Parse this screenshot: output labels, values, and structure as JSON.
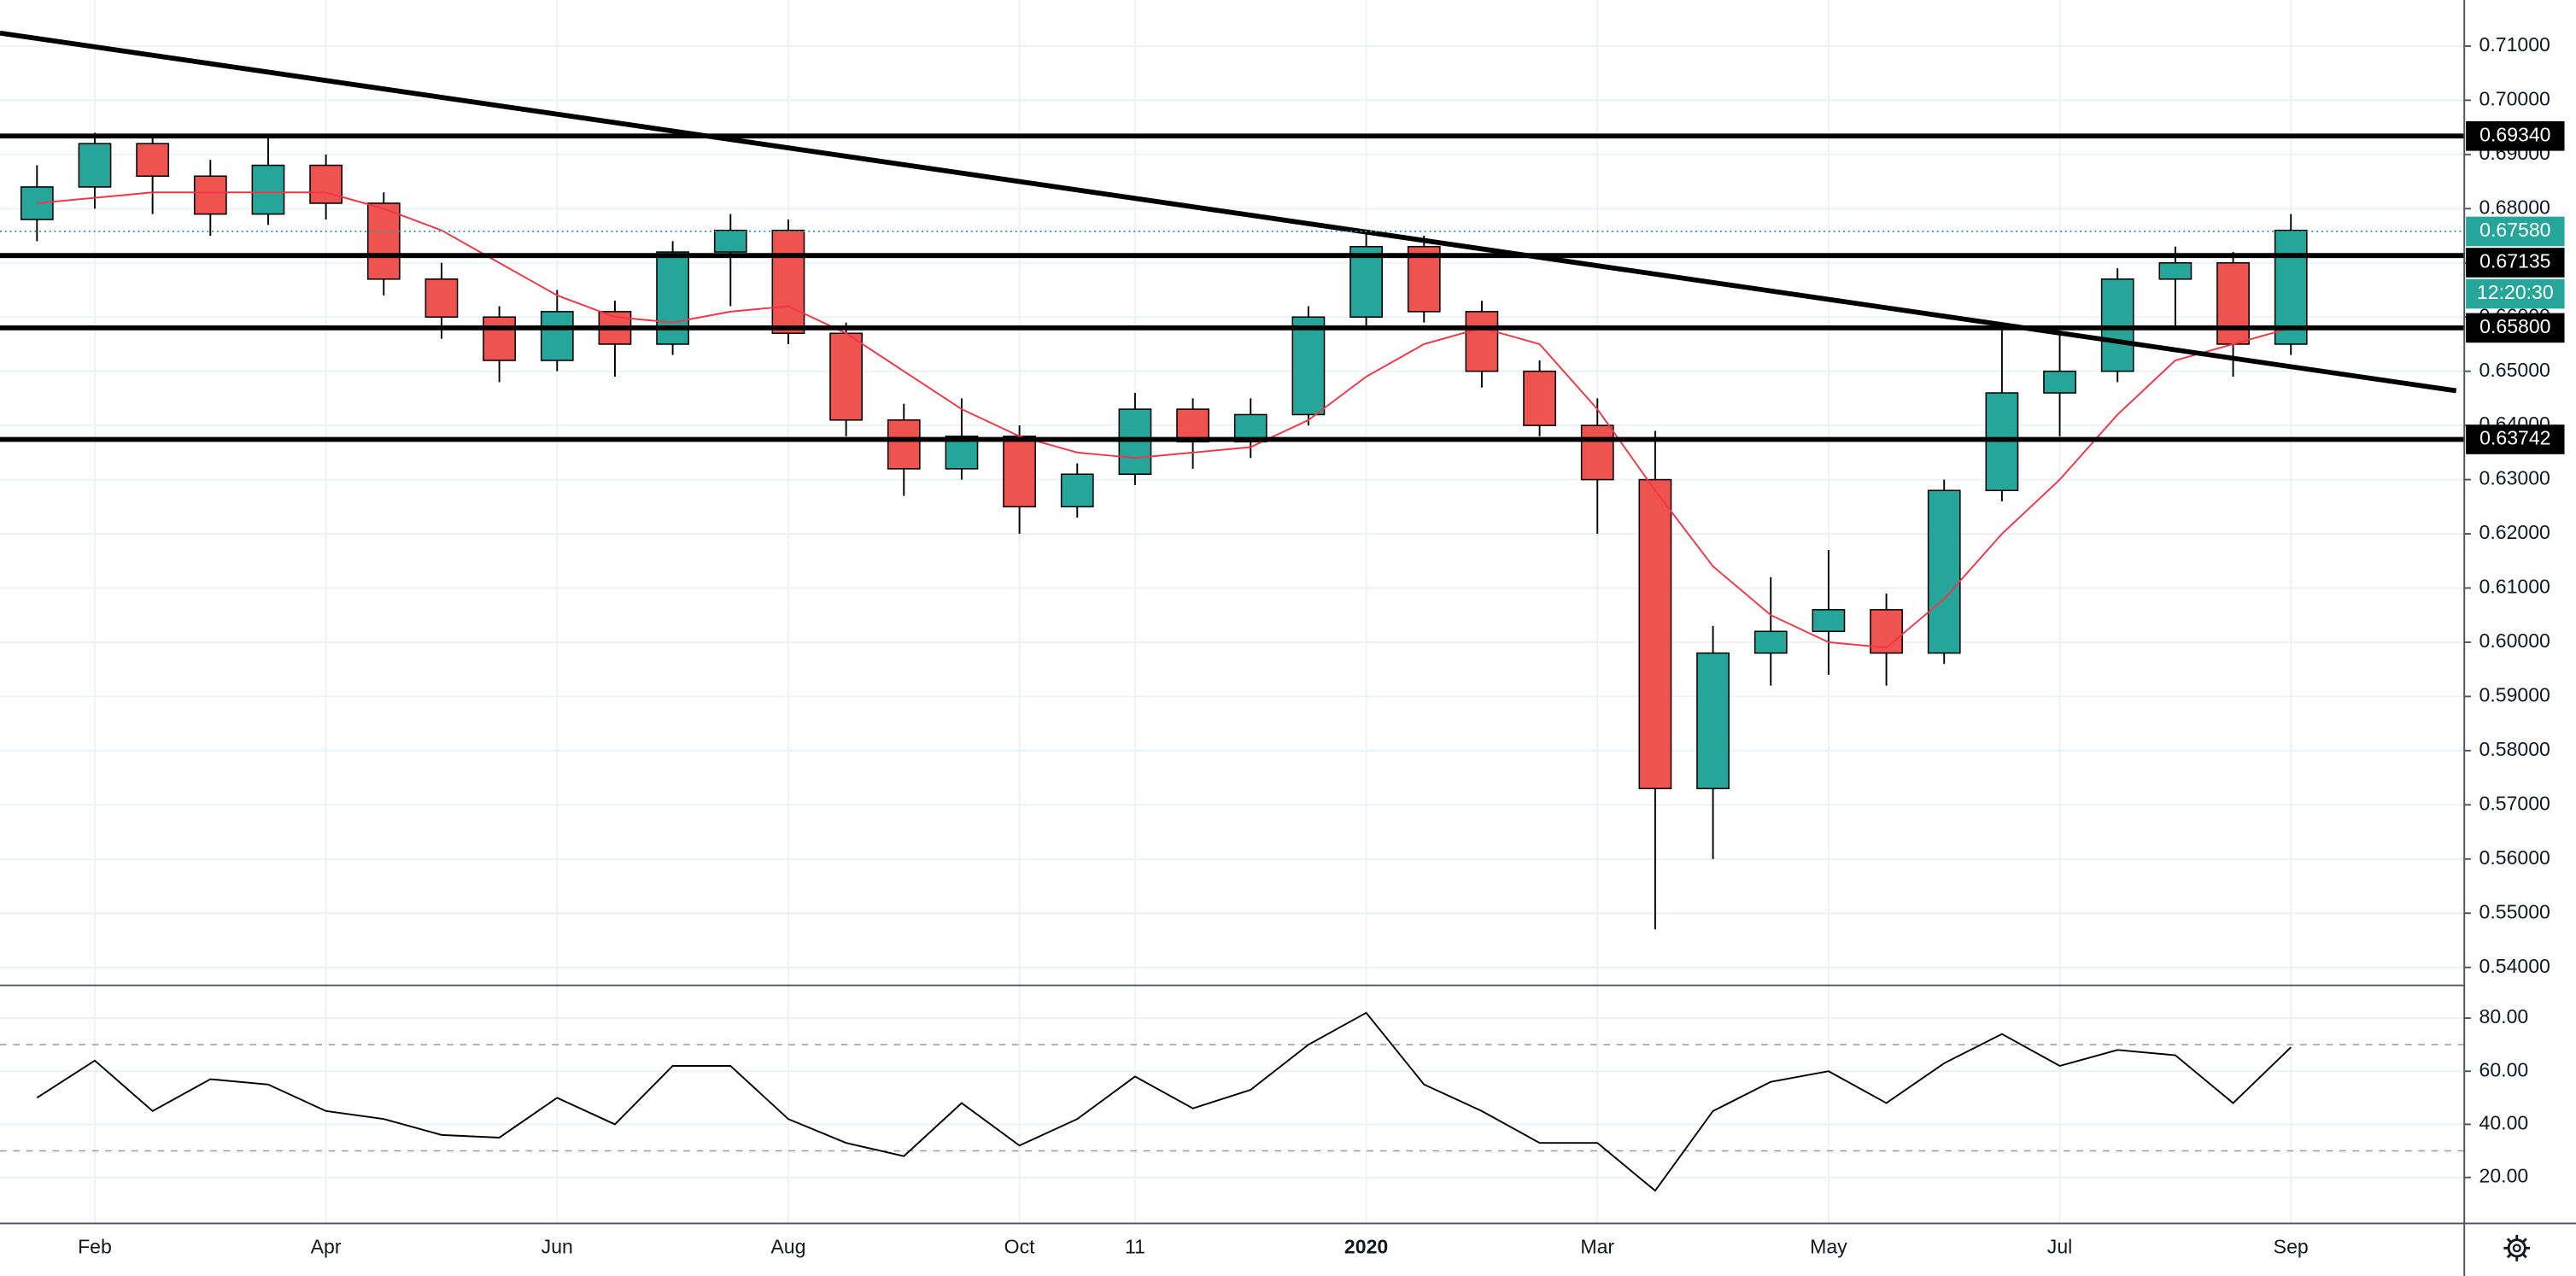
{
  "chart_data": [
    {
      "type": "candlestick",
      "x": [
        0.5,
        1.0,
        1.5,
        2.0,
        2.5,
        3.0,
        3.5,
        4.0,
        4.5,
        5.0,
        5.5,
        6.0,
        6.5,
        7.0,
        7.5,
        8.0,
        8.5,
        9.0,
        9.5,
        10.0,
        10.5,
        11.0,
        11.5,
        12.0,
        12.5,
        13.0,
        13.5,
        14.0,
        14.5,
        15.0,
        15.5,
        16.0,
        16.5,
        17.0,
        17.5,
        18.0,
        18.5,
        19.0,
        19.5,
        20.0
      ],
      "open": [
        0.678,
        0.684,
        0.692,
        0.686,
        0.679,
        0.688,
        0.681,
        0.667,
        0.66,
        0.652,
        0.661,
        0.655,
        0.672,
        0.676,
        0.657,
        0.641,
        0.632,
        0.638,
        0.625,
        0.631,
        0.643,
        0.637,
        0.642,
        0.66,
        0.673,
        0.661,
        0.65,
        0.64,
        0.63,
        0.573,
        0.598,
        0.602,
        0.606,
        0.598,
        0.628,
        0.646,
        0.65,
        0.667,
        0.67,
        0.655
      ],
      "high": [
        0.688,
        0.694,
        0.693,
        0.689,
        0.693,
        0.69,
        0.683,
        0.67,
        0.662,
        0.665,
        0.663,
        0.674,
        0.679,
        0.678,
        0.659,
        0.644,
        0.645,
        0.64,
        0.633,
        0.646,
        0.645,
        0.645,
        0.662,
        0.676,
        0.675,
        0.663,
        0.652,
        0.645,
        0.639,
        0.603,
        0.612,
        0.617,
        0.609,
        0.63,
        0.658,
        0.657,
        0.669,
        0.673,
        0.672,
        0.679
      ],
      "low": [
        0.674,
        0.68,
        0.679,
        0.675,
        0.677,
        0.678,
        0.664,
        0.656,
        0.648,
        0.65,
        0.649,
        0.653,
        0.662,
        0.655,
        0.638,
        0.627,
        0.63,
        0.62,
        0.623,
        0.629,
        0.632,
        0.634,
        0.64,
        0.658,
        0.659,
        0.647,
        0.638,
        0.62,
        0.547,
        0.56,
        0.592,
        0.594,
        0.592,
        0.596,
        0.626,
        0.638,
        0.648,
        0.658,
        0.649,
        0.653
      ],
      "close": [
        0.684,
        0.692,
        0.686,
        0.679,
        0.688,
        0.681,
        0.667,
        0.66,
        0.652,
        0.661,
        0.655,
        0.672,
        0.676,
        0.657,
        0.641,
        0.632,
        0.638,
        0.625,
        0.631,
        0.643,
        0.637,
        0.642,
        0.66,
        0.673,
        0.661,
        0.65,
        0.64,
        0.63,
        0.573,
        0.598,
        0.602,
        0.606,
        0.598,
        0.628,
        0.646,
        0.65,
        0.667,
        0.67,
        0.655,
        0.676
      ],
      "up_color": "#26a69a",
      "down_color": "#ef5350",
      "xlim": [
        0.18,
        21.5
      ],
      "xticks": [
        {
          "value": 1,
          "label": "Feb"
        },
        {
          "value": 3,
          "label": "Apr"
        },
        {
          "value": 5,
          "label": "Jun"
        },
        {
          "value": 7,
          "label": "Aug"
        },
        {
          "value": 9,
          "label": "Oct"
        },
        {
          "value": 10,
          "label": "11"
        },
        {
          "value": 12,
          "label": "2020"
        },
        {
          "value": 14,
          "label": "Mar"
        },
        {
          "value": 16,
          "label": "May"
        },
        {
          "value": 18,
          "label": "Jul"
        },
        {
          "value": 20,
          "label": "Sep"
        }
      ],
      "ylim": [
        0.5373,
        0.7185
      ],
      "yticks": [
        {
          "value": 0.71,
          "label": "0.71000"
        },
        {
          "value": 0.7,
          "label": "0.70000"
        },
        {
          "value": 0.69,
          "label": "0.69000"
        },
        {
          "value": 0.68,
          "label": "0.68000"
        },
        {
          "value": 0.67,
          "label": "0.67000"
        },
        {
          "value": 0.66,
          "label": "0.66000"
        },
        {
          "value": 0.65,
          "label": "0.65000"
        },
        {
          "value": 0.64,
          "label": "0.64000"
        },
        {
          "value": 0.63,
          "label": "0.63000"
        },
        {
          "value": 0.62,
          "label": "0.62000"
        },
        {
          "value": 0.61,
          "label": "0.61000"
        },
        {
          "value": 0.6,
          "label": "0.60000"
        },
        {
          "value": 0.59,
          "label": "0.59000"
        },
        {
          "value": 0.58,
          "label": "0.58000"
        },
        {
          "value": 0.57,
          "label": "0.57000"
        },
        {
          "value": 0.56,
          "label": "0.56000"
        },
        {
          "value": 0.55,
          "label": "0.55000"
        },
        {
          "value": 0.54,
          "label": "0.54000"
        }
      ],
      "grid": true,
      "moving_average": {
        "color": "#f23645",
        "x": [
          0.5,
          1.5,
          2.5,
          3.0,
          3.5,
          4.0,
          4.5,
          5.0,
          5.5,
          6.0,
          6.5,
          7.0,
          7.5,
          8.0,
          8.5,
          9.0,
          9.5,
          10.0,
          10.5,
          11.0,
          11.5,
          12.0,
          12.5,
          13.0,
          13.5,
          14.0,
          14.5,
          15.0,
          15.5,
          16.0,
          16.5,
          17.0,
          17.5,
          18.0,
          18.5,
          19.0,
          19.5,
          20.0
        ],
        "values": [
          0.681,
          0.683,
          0.683,
          0.683,
          0.68,
          0.676,
          0.67,
          0.664,
          0.66,
          0.659,
          0.661,
          0.662,
          0.657,
          0.65,
          0.643,
          0.638,
          0.635,
          0.634,
          0.635,
          0.636,
          0.641,
          0.649,
          0.655,
          0.658,
          0.655,
          0.643,
          0.628,
          0.614,
          0.605,
          0.6,
          0.599,
          0.608,
          0.62,
          0.63,
          0.642,
          0.652,
          0.655,
          0.658
        ]
      },
      "trendline": {
        "color": "#000000",
        "x": [
          0.18,
          21.43
        ],
        "values": [
          0.7124,
          0.6464
        ]
      },
      "levels": [
        {
          "value": 0.6934,
          "label": "0.69340"
        },
        {
          "value": 0.67135,
          "label": "0.67135"
        },
        {
          "value": 0.658,
          "label": "0.65800"
        },
        {
          "value": 0.63742,
          "label": "0.63742"
        }
      ],
      "level_color": "#000000",
      "current_price": {
        "value": 0.6758,
        "label": "0.67580",
        "color": "#26a69a"
      },
      "countdown": "12:20:30"
    },
    {
      "type": "line",
      "color": "#000000",
      "x": [
        0.5,
        1.0,
        1.5,
        2.0,
        2.5,
        3.0,
        3.5,
        4.0,
        4.5,
        5.0,
        5.5,
        6.0,
        6.5,
        7.0,
        7.5,
        8.0,
        8.5,
        9.0,
        9.5,
        10.0,
        10.5,
        11.0,
        11.5,
        12.0,
        12.5,
        13.0,
        13.5,
        14.0,
        14.5,
        15.0,
        15.5,
        16.0,
        16.5,
        17.0,
        17.5,
        18.0,
        18.5,
        19.0,
        19.5,
        20.0
      ],
      "values": [
        50,
        64,
        45,
        57,
        55,
        45,
        42,
        36,
        35,
        50,
        40,
        62,
        62,
        42,
        33,
        28,
        48,
        32,
        42,
        58,
        46,
        53,
        70,
        82,
        55,
        45,
        33,
        33,
        15,
        45,
        56,
        60,
        48,
        63,
        74,
        62,
        68,
        66,
        48,
        69
      ],
      "ylim": [
        3.3,
        91.1
      ],
      "yticks": [
        {
          "value": 80,
          "label": "80.00"
        },
        {
          "value": 60,
          "label": "60.00"
        },
        {
          "value": 40,
          "label": "40.00"
        },
        {
          "value": 20,
          "label": "20.00"
        }
      ],
      "bands": [
        30,
        70
      ]
    }
  ]
}
